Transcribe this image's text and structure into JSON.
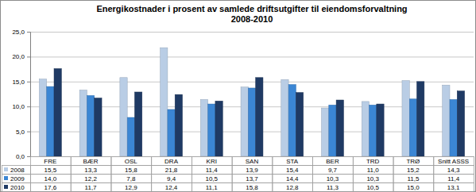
{
  "chart_data": {
    "type": "bar",
    "title": "Energikostnader i prosent av samlede driftsutgifter til eiendomsforvaltning\n2008-2010",
    "categories": [
      "FRE",
      "BÆR",
      "OSL",
      "DRA",
      "KRI",
      "SAN",
      "STA",
      "BER",
      "TRD",
      "TRØ",
      "Snitt ASSS"
    ],
    "series": [
      {
        "name": "2008",
        "color": "#b9cde5",
        "values": [
          15.5,
          13.3,
          15.8,
          21.8,
          11.4,
          13.9,
          15.4,
          9.7,
          11.0,
          15.2,
          14.3
        ],
        "value_labels": [
          "15,5",
          "13,3",
          "15,8",
          "21,8",
          "11,4",
          "13,9",
          "15,4",
          "9,7",
          "11,0",
          "15,2",
          "14,3"
        ]
      },
      {
        "name": "2009",
        "color": "#3b86d4",
        "values": [
          14.0,
          12.2,
          7.8,
          9.4,
          10.5,
          13.7,
          14.4,
          10.3,
          10.3,
          11.5,
          11.4
        ],
        "value_labels": [
          "14,0",
          "12,2",
          "7,8",
          "9,4",
          "10,5",
          "13,7",
          "14,4",
          "10,3",
          "10,3",
          "11,5",
          "11,4"
        ]
      },
      {
        "name": "2010",
        "color": "#1f3a64",
        "values": [
          17.6,
          11.7,
          12.9,
          12.4,
          11.1,
          15.8,
          12.8,
          11.3,
          10.5,
          15.0,
          13.1
        ],
        "value_labels": [
          "17,6",
          "11,7",
          "12,9",
          "12,4",
          "11,1",
          "15,8",
          "12,8",
          "11,3",
          "10,5",
          "15,0",
          "13,1"
        ]
      }
    ],
    "ylim": [
      0,
      25
    ],
    "yticks": [
      {
        "value": 0,
        "label": "0,0"
      },
      {
        "value": 5,
        "label": "5,0"
      },
      {
        "value": 10,
        "label": "10,0"
      },
      {
        "value": 15,
        "label": "15,0"
      },
      {
        "value": 20,
        "label": "20,0"
      },
      {
        "value": 25,
        "label": "25,0"
      }
    ],
    "grid": true
  }
}
